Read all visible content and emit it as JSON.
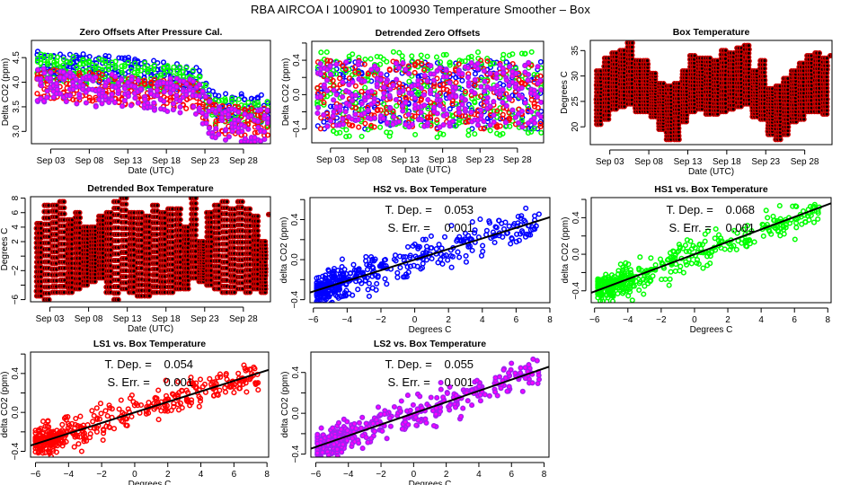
{
  "page_title": "RBA   AIRCOA I   100901 to 100930   Temperature Smoother – Box",
  "colors": {
    "HS2": "#0000ff",
    "HS1": "#00ff00",
    "LS1": "#ff0000",
    "LS2": "#a020f0",
    "LS2_inner": "#ff00ff",
    "box_temp": "#cc0000",
    "box_temp_inner": "#000000",
    "fit_line": "#000000"
  },
  "chart_data": [
    {
      "id": "zero-offsets",
      "type": "scatter",
      "title": "Zero Offsets After Pressure Cal.",
      "xlabel": "Date (UTC)",
      "ylabel": "Delta CO2 (ppm)",
      "x_kind": "date",
      "xlim": [
        0.5,
        31.5
      ],
      "ylim": [
        2.75,
        4.85
      ],
      "xticks": [
        {
          "v": 3,
          "label": "Sep 03"
        },
        {
          "v": 8,
          "label": "Sep 08"
        },
        {
          "v": 13,
          "label": "Sep 13"
        },
        {
          "v": 18,
          "label": "Sep 18"
        },
        {
          "v": 23,
          "label": "Sep 23"
        },
        {
          "v": 28,
          "label": "Sep 28"
        }
      ],
      "yticks": [
        {
          "v": 3.0,
          "label": "3.0"
        },
        {
          "v": 3.5,
          "label": "3.5"
        },
        {
          "v": 4.0,
          "label": "4.0"
        },
        {
          "v": 4.5,
          "label": "4.5"
        }
      ],
      "series": [
        {
          "name": "HS2",
          "color_key": "HS2",
          "trend": [
            [
              1,
              4.35
            ],
            [
              12,
              4.25
            ],
            [
              22,
              4.05
            ],
            [
              24,
              3.55
            ],
            [
              31,
              3.45
            ]
          ],
          "amplitude": 0.28
        },
        {
          "name": "HS1",
          "color_key": "HS1",
          "trend": [
            [
              1,
              4.3
            ],
            [
              12,
              4.2
            ],
            [
              22,
              4.0
            ],
            [
              24,
              3.45
            ],
            [
              31,
              3.35
            ]
          ],
          "amplitude": 0.28
        },
        {
          "name": "LS1",
          "color_key": "LS1",
          "trend": [
            [
              1,
              4.0
            ],
            [
              12,
              3.85
            ],
            [
              22,
              3.75
            ],
            [
              24,
              3.25
            ],
            [
              31,
              3.2
            ]
          ],
          "amplitude": 0.3
        },
        {
          "name": "LS2",
          "color_key": "LS2",
          "trend": [
            [
              1,
              3.95
            ],
            [
              12,
              3.8
            ],
            [
              22,
              3.7
            ],
            [
              24,
              3.15
            ],
            [
              31,
              3.1
            ]
          ],
          "amplitude": 0.35
        }
      ]
    },
    {
      "id": "detrended-zero-offsets",
      "type": "scatter",
      "title": "Detrended Zero Offsets",
      "xlabel": "Date (UTC)",
      "ylabel": "Delta CO2 (ppm)",
      "x_kind": "date",
      "xlim": [
        0.5,
        31.5
      ],
      "ylim": [
        -0.56,
        0.62
      ],
      "xticks": [
        {
          "v": 3,
          "label": "Sep 03"
        },
        {
          "v": 8,
          "label": "Sep 08"
        },
        {
          "v": 13,
          "label": "Sep 13"
        },
        {
          "v": 18,
          "label": "Sep 18"
        },
        {
          "v": 23,
          "label": "Sep 23"
        },
        {
          "v": 28,
          "label": "Sep 28"
        }
      ],
      "yticks": [
        {
          "v": -0.4,
          "label": "−0.4"
        },
        {
          "v": -0.2,
          "label": ""
        },
        {
          "v": 0.0,
          "label": "0.0"
        },
        {
          "v": 0.2,
          "label": ""
        },
        {
          "v": 0.4,
          "label": "0.4"
        },
        {
          "v": 0.6,
          "label": ""
        }
      ],
      "series": [
        {
          "name": "HS2",
          "color_key": "HS2",
          "trend": [
            [
              1,
              0.0
            ],
            [
              31,
              0.0
            ]
          ],
          "amplitude": 0.4
        },
        {
          "name": "HS1",
          "color_key": "HS1",
          "trend": [
            [
              1,
              0.0
            ],
            [
              31,
              0.0
            ]
          ],
          "amplitude": 0.5
        },
        {
          "name": "LS1",
          "color_key": "LS1",
          "trend": [
            [
              1,
              0.0
            ],
            [
              31,
              0.0
            ]
          ],
          "amplitude": 0.4
        },
        {
          "name": "LS2",
          "color_key": "LS2",
          "trend": [
            [
              1,
              0.0
            ],
            [
              31,
              0.0
            ]
          ],
          "amplitude": 0.38
        }
      ]
    },
    {
      "id": "box-temperature",
      "type": "scatter",
      "title": "Box Temperature",
      "xlabel": "Date (UTC)",
      "ylabel": "Degrees C",
      "x_kind": "date",
      "xlim": [
        0.5,
        31.5
      ],
      "ylim": [
        16.5,
        37
      ],
      "xticks": [
        {
          "v": 3,
          "label": "Sep 03"
        },
        {
          "v": 8,
          "label": "Sep 08"
        },
        {
          "v": 13,
          "label": "Sep 13"
        },
        {
          "v": 18,
          "label": "Sep 18"
        },
        {
          "v": 23,
          "label": "Sep 23"
        },
        {
          "v": 28,
          "label": "Sep 28"
        }
      ],
      "yticks": [
        {
          "v": 20,
          "label": "20"
        },
        {
          "v": 25,
          "label": "25"
        },
        {
          "v": 30,
          "label": "30"
        },
        {
          "v": 35,
          "label": "35"
        }
      ],
      "daily_min": [
        20.5,
        21.5,
        23.5,
        24.0,
        24.5,
        23.0,
        23.0,
        22.0,
        19.5,
        17.5,
        17.5,
        21.0,
        23.0,
        23.5,
        22.5,
        22.5,
        23.0,
        23.5,
        24.0,
        24.5,
        22.0,
        21.5,
        18.5,
        17.5,
        18.5,
        21.0,
        21.5,
        23.0,
        23.0,
        22.5,
        33.5
      ],
      "daily_max": [
        31.0,
        33.5,
        34.5,
        35.0,
        36.5,
        33.0,
        33.0,
        30.5,
        28.5,
        28.0,
        28.5,
        31.0,
        34.0,
        33.5,
        33.5,
        33.0,
        35.0,
        34.5,
        35.5,
        36.0,
        31.0,
        33.0,
        27.5,
        28.0,
        29.5,
        31.0,
        32.5,
        34.0,
        34.5,
        33.5,
        34.5
      ],
      "series": [
        {
          "name": "Box Temp",
          "color_key": "box_temp"
        }
      ]
    },
    {
      "id": "detrended-box-temperature",
      "type": "scatter",
      "title": "Detrended Box Temperature",
      "xlabel": "Date (UTC)",
      "ylabel": "Degrees C",
      "x_kind": "date",
      "xlim": [
        0.5,
        31.5
      ],
      "ylim": [
        -6.3,
        8.2
      ],
      "xticks": [
        {
          "v": 3,
          "label": "Sep 03"
        },
        {
          "v": 8,
          "label": "Sep 08"
        },
        {
          "v": 13,
          "label": "Sep 13"
        },
        {
          "v": 18,
          "label": "Sep 18"
        },
        {
          "v": 23,
          "label": "Sep 23"
        },
        {
          "v": 28,
          "label": "Sep 28"
        }
      ],
      "yticks": [
        {
          "v": -6,
          "label": "−6"
        },
        {
          "v": -4,
          "label": ""
        },
        {
          "v": -2,
          "label": "−2"
        },
        {
          "v": 0,
          "label": ""
        },
        {
          "v": 2,
          "label": "2"
        },
        {
          "v": 4,
          "label": "4"
        },
        {
          "v": 6,
          "label": "6"
        },
        {
          "v": 8,
          "label": "8"
        }
      ],
      "daily_min": [
        -5.5,
        -6.0,
        -5.0,
        -5.0,
        -5.0,
        -4.5,
        -4.0,
        -3.5,
        -3.0,
        -5.0,
        -6.0,
        -4.5,
        -5.0,
        -5.5,
        -5.5,
        -5.0,
        -5.0,
        -5.0,
        -4.5,
        -4.5,
        -3.0,
        -3.5,
        -4.0,
        -4.5,
        -5.0,
        -5.0,
        -4.5,
        -5.0,
        -4.5,
        -5.0,
        5.5
      ],
      "daily_max": [
        4.5,
        7.0,
        7.0,
        7.5,
        5.0,
        6.0,
        4.0,
        4.0,
        5.5,
        6.0,
        7.5,
        8.0,
        6.0,
        6.0,
        5.5,
        7.0,
        6.0,
        6.5,
        6.5,
        4.0,
        8.0,
        2.0,
        6.0,
        7.0,
        7.5,
        6.5,
        7.5,
        6.5,
        5.5,
        2.0,
        6.0
      ],
      "series": [
        {
          "name": "Detrended Box Temp",
          "color_key": "box_temp"
        }
      ]
    },
    {
      "id": "hs2-vs-box",
      "type": "scatter",
      "title": "HS2 vs. Box Temperature",
      "xlabel": "Degrees C",
      "ylabel": "delta CO2 (ppm)",
      "xlim": [
        -6.2,
        8.0
      ],
      "ylim": [
        -0.43,
        0.62
      ],
      "xticks": [
        {
          "v": -6,
          "label": "−6"
        },
        {
          "v": -4,
          "label": "−4"
        },
        {
          "v": -2,
          "label": "−2"
        },
        {
          "v": 0,
          "label": "0"
        },
        {
          "v": 2,
          "label": "2"
        },
        {
          "v": 4,
          "label": "4"
        },
        {
          "v": 6,
          "label": "6"
        },
        {
          "v": 8,
          "label": "8"
        }
      ],
      "yticks": [
        {
          "v": -0.4,
          "label": "−0.4"
        },
        {
          "v": -0.2,
          "label": ""
        },
        {
          "v": 0.0,
          "label": "0.0"
        },
        {
          "v": 0.2,
          "label": ""
        },
        {
          "v": 0.4,
          "label": "0.4"
        },
        {
          "v": 0.6,
          "label": ""
        }
      ],
      "fit": {
        "slope": 0.053,
        "intercept": 0.0
      },
      "annotation": {
        "tdep_label": "T. Dep. =",
        "tdep_value": "0.053",
        "serr_label": "S. Err. =",
        "serr_value": "0.001"
      },
      "x_range": [
        -5.8,
        7.4
      ],
      "scatter_sd": 0.08,
      "series": [
        {
          "name": "HS2",
          "color_key": "HS2"
        }
      ]
    },
    {
      "id": "hs1-vs-box",
      "type": "scatter",
      "title": "HS1 vs. Box Temperature",
      "xlabel": "Degrees C",
      "ylabel": "delta CO2 (ppm)",
      "xlim": [
        -6.2,
        8.2
      ],
      "ylim": [
        -0.53,
        0.62
      ],
      "xticks": [
        {
          "v": -6,
          "label": "−6"
        },
        {
          "v": -4,
          "label": "−4"
        },
        {
          "v": -2,
          "label": "−2"
        },
        {
          "v": 0,
          "label": "0"
        },
        {
          "v": 2,
          "label": "2"
        },
        {
          "v": 4,
          "label": "4"
        },
        {
          "v": 6,
          "label": "6"
        },
        {
          "v": 8,
          "label": "8"
        }
      ],
      "yticks": [
        {
          "v": -0.4,
          "label": "−0.4"
        },
        {
          "v": -0.2,
          "label": ""
        },
        {
          "v": 0.0,
          "label": "0.0"
        },
        {
          "v": 0.2,
          "label": ""
        },
        {
          "v": 0.4,
          "label": "0.4"
        },
        {
          "v": 0.6,
          "label": ""
        }
      ],
      "fit": {
        "slope": 0.068,
        "intercept": 0.0
      },
      "annotation": {
        "tdep_label": "T. Dep. =",
        "tdep_value": "0.068",
        "serr_label": "S. Err. =",
        "serr_value": "0.001"
      },
      "x_range": [
        -5.8,
        7.5
      ],
      "scatter_sd": 0.08,
      "series": [
        {
          "name": "HS1",
          "color_key": "HS1"
        }
      ]
    },
    {
      "id": "ls1-vs-box",
      "type": "scatter",
      "title": "LS1 vs. Box Temperature",
      "xlabel": "Degrees C",
      "ylabel": "delta CO2 (ppm)",
      "xlim": [
        -6.3,
        8.1
      ],
      "ylim": [
        -0.46,
        0.62
      ],
      "xticks": [
        {
          "v": -6,
          "label": "−6"
        },
        {
          "v": -4,
          "label": "−4"
        },
        {
          "v": -2,
          "label": "−2"
        },
        {
          "v": 0,
          "label": "0"
        },
        {
          "v": 2,
          "label": "2"
        },
        {
          "v": 4,
          "label": "4"
        },
        {
          "v": 6,
          "label": "6"
        },
        {
          "v": 8,
          "label": "8"
        }
      ],
      "yticks": [
        {
          "v": -0.4,
          "label": "−0.4"
        },
        {
          "v": -0.2,
          "label": ""
        },
        {
          "v": 0.0,
          "label": "0.0"
        },
        {
          "v": 0.2,
          "label": ""
        },
        {
          "v": 0.4,
          "label": "0.4"
        },
        {
          "v": 0.6,
          "label": ""
        }
      ],
      "fit": {
        "slope": 0.054,
        "intercept": 0.0
      },
      "annotation": {
        "tdep_label": "T. Dep. =",
        "tdep_value": "0.054",
        "serr_label": "S. Err. =",
        "serr_value": "0.001"
      },
      "x_range": [
        -6.0,
        7.6
      ],
      "scatter_sd": 0.075,
      "series": [
        {
          "name": "LS1",
          "color_key": "LS1"
        }
      ]
    },
    {
      "id": "ls2-vs-box",
      "type": "scatter",
      "title": "LS2 vs. Box Temperature",
      "xlabel": "Degrees C",
      "ylabel": "delta CO2 (ppm)",
      "xlim": [
        -6.3,
        8.3
      ],
      "ylim": [
        -0.43,
        0.6
      ],
      "xticks": [
        {
          "v": -6,
          "label": "−6"
        },
        {
          "v": -4,
          "label": "−4"
        },
        {
          "v": -2,
          "label": "−2"
        },
        {
          "v": 0,
          "label": "0"
        },
        {
          "v": 2,
          "label": "2"
        },
        {
          "v": 4,
          "label": "4"
        },
        {
          "v": 6,
          "label": "6"
        },
        {
          "v": 8,
          "label": "8"
        }
      ],
      "yticks": [
        {
          "v": -0.4,
          "label": "−0.4"
        },
        {
          "v": -0.2,
          "label": ""
        },
        {
          "v": 0.0,
          "label": "0.0"
        },
        {
          "v": 0.2,
          "label": ""
        },
        {
          "v": 0.4,
          "label": "0.4"
        }
      ],
      "fit": {
        "slope": 0.055,
        "intercept": 0.0
      },
      "annotation": {
        "tdep_label": "T. Dep. =",
        "tdep_value": "0.055",
        "serr_label": "S. Err. =",
        "serr_value": "0.001"
      },
      "x_range": [
        -5.9,
        7.8
      ],
      "scatter_sd": 0.075,
      "series": [
        {
          "name": "LS2",
          "color_key": "LS2"
        }
      ]
    }
  ]
}
